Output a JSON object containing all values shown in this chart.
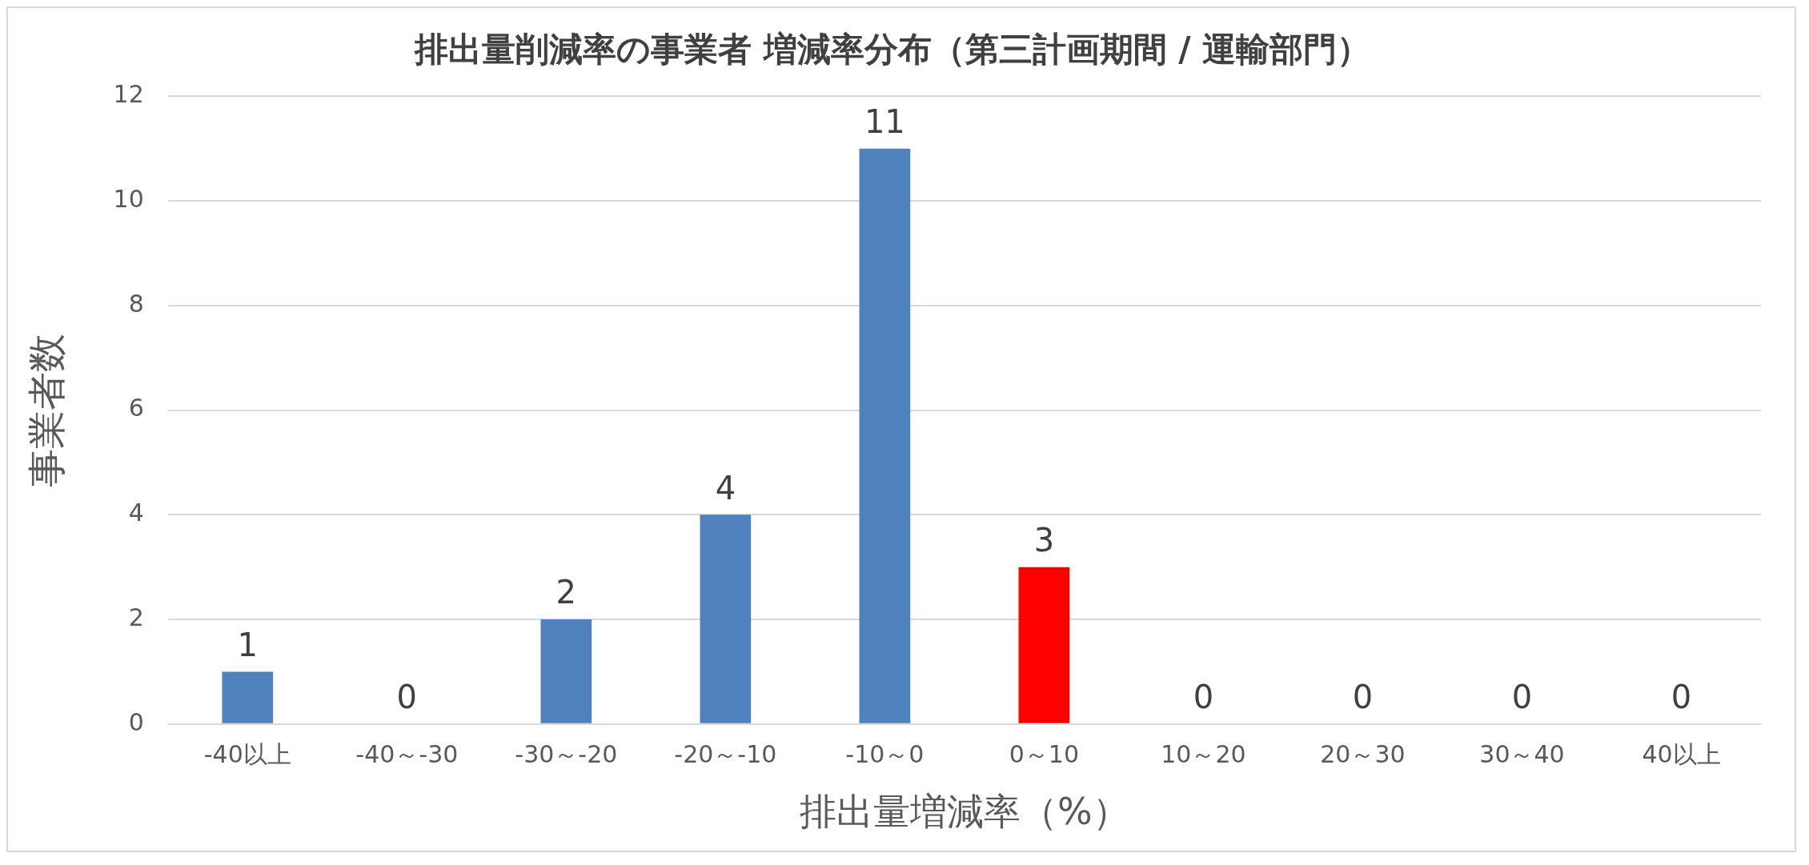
{
  "chart_data": {
    "type": "bar",
    "title": "排出量削減率の事業者 増減率分布（第三計画期間 / 運輸部門）",
    "xlabel": "排出量増減率（%）",
    "ylabel": "事業者数",
    "categories": [
      "-40以上",
      "-40～-30",
      "-30～-20",
      "-20～-10",
      "-10～0",
      "0～10",
      "10～20",
      "20～30",
      "30～40",
      "40以上"
    ],
    "values": [
      1,
      0,
      2,
      4,
      11,
      3,
      0,
      0,
      0,
      0
    ],
    "colors": [
      "#4f81bd",
      "#4f81bd",
      "#4f81bd",
      "#4f81bd",
      "#4f81bd",
      "#ff0000",
      "#4f81bd",
      "#4f81bd",
      "#4f81bd",
      "#4f81bd"
    ],
    "ylim": [
      0,
      12
    ],
    "yticks": [
      0,
      2,
      4,
      6,
      8,
      10,
      12
    ],
    "grid": "y",
    "data_labels": true,
    "legend": false
  }
}
